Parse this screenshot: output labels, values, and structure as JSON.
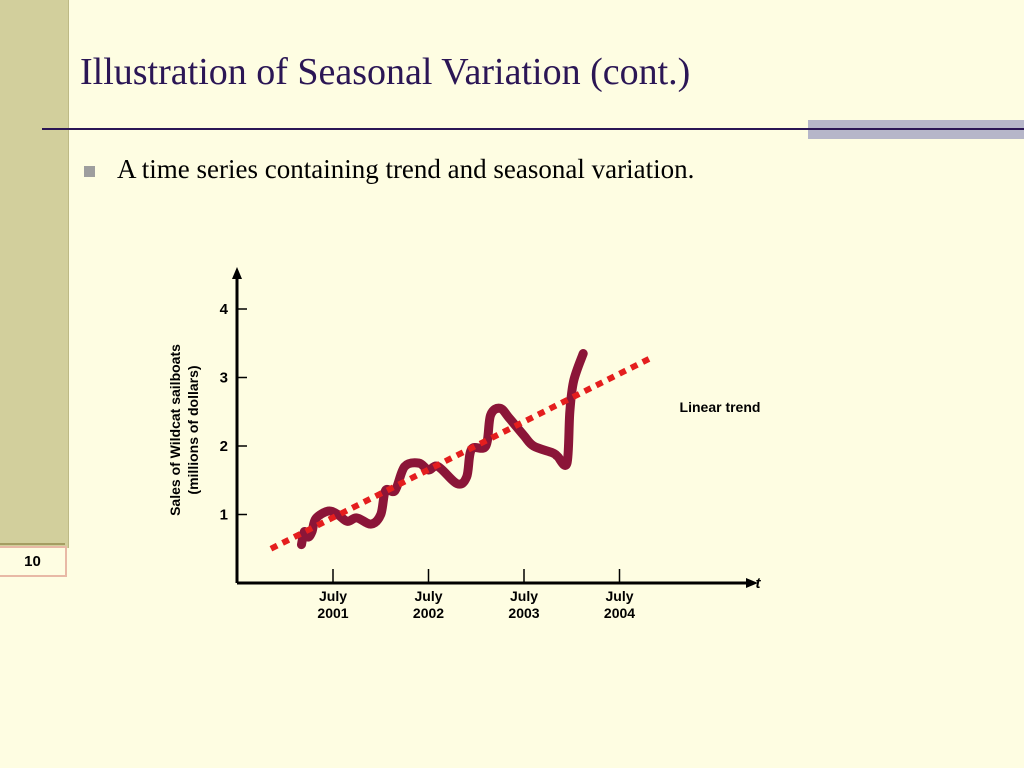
{
  "slide": {
    "title": "Illustration of Seasonal Variation (cont.)",
    "bullet": "A time series containing trend and seasonal variation.",
    "number": "10"
  },
  "colors": {
    "background": "#fefde2",
    "sidebar": "#d2cf9c",
    "title": "#2b1655",
    "series_line": "#8b1538",
    "trend_line": "#e41e1e"
  },
  "chart_data": {
    "type": "line",
    "title": "",
    "ylabel": "Sales of Wildcat sailboats\n(millions of dollars)",
    "xlabel": "t",
    "ylim": [
      0,
      4.5
    ],
    "yticks": [
      1,
      2,
      3,
      4
    ],
    "x_ticks": [
      {
        "t": 1,
        "label": "July\n2001"
      },
      {
        "t": 2,
        "label": "July\n2002"
      },
      {
        "t": 3,
        "label": "July\n2003"
      },
      {
        "t": 4,
        "label": "July\n2004"
      }
    ],
    "series": [
      {
        "style": "thick-solid",
        "color": "#8b1538",
        "points": [
          [
            0.67,
            0.56
          ],
          [
            0.7,
            0.75
          ],
          [
            0.74,
            0.67
          ],
          [
            0.78,
            0.75
          ],
          [
            0.82,
            0.94
          ],
          [
            0.95,
            1.05
          ],
          [
            1.05,
            1.0
          ],
          [
            1.15,
            0.9
          ],
          [
            1.25,
            0.95
          ],
          [
            1.4,
            0.86
          ],
          [
            1.5,
            1.0
          ],
          [
            1.55,
            1.35
          ],
          [
            1.65,
            1.35
          ],
          [
            1.75,
            1.7
          ],
          [
            1.9,
            1.75
          ],
          [
            2.0,
            1.65
          ],
          [
            2.1,
            1.7
          ],
          [
            2.3,
            1.45
          ],
          [
            2.4,
            1.55
          ],
          [
            2.45,
            1.95
          ],
          [
            2.6,
            2.0
          ],
          [
            2.65,
            2.45
          ],
          [
            2.75,
            2.55
          ],
          [
            2.85,
            2.4
          ],
          [
            3.0,
            2.15
          ],
          [
            3.1,
            2.0
          ],
          [
            3.3,
            1.9
          ],
          [
            3.35,
            1.85
          ],
          [
            3.45,
            1.75
          ],
          [
            3.48,
            2.5
          ],
          [
            3.52,
            2.95
          ],
          [
            3.62,
            3.35
          ]
        ]
      },
      {
        "name": "Linear trend",
        "style": "dotted",
        "color": "#e41e1e",
        "points": [
          [
            0.35,
            0.5
          ],
          [
            4.35,
            3.3
          ]
        ]
      }
    ]
  }
}
